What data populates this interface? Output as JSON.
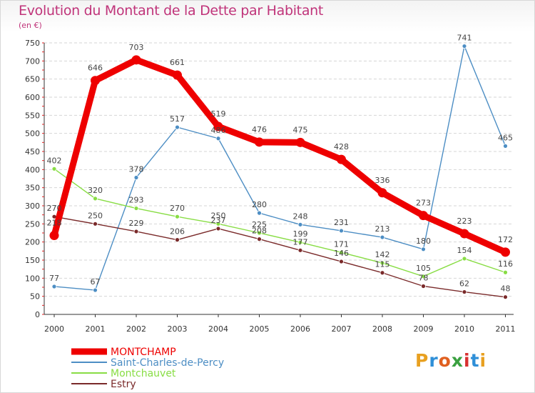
{
  "header": {
    "title": "Evolution du Montant de la Dette par Habitant",
    "unit": "(en €)"
  },
  "logo": {
    "text": "Proxiti",
    "colors": [
      "#e8a020",
      "#2f8fd8",
      "#e06020",
      "#3aa040",
      "#d83030",
      "#2f8fd8",
      "#e8a020"
    ]
  },
  "chart_data": {
    "type": "line",
    "title": "Evolution du Montant de la Dette par Habitant",
    "subtitle": "(en €)",
    "xlabel": "",
    "ylabel": "",
    "x": [
      "2000",
      "2001",
      "2002",
      "2003",
      "2004",
      "2005",
      "2006",
      "2007",
      "2008",
      "2009",
      "2010",
      "2011"
    ],
    "ylim": [
      0,
      750
    ],
    "yticks": [
      0,
      50,
      100,
      150,
      200,
      250,
      300,
      350,
      400,
      450,
      500,
      550,
      600,
      650,
      700,
      750
    ],
    "grid": "horizontal",
    "legend_position": "bottom-left",
    "series": [
      {
        "name": "MONTCHAMP",
        "color": "#ee0000",
        "emphasis": true,
        "values": [
          218,
          646,
          703,
          661,
          519,
          476,
          475,
          428,
          336,
          273,
          223,
          172
        ],
        "labels": [
          "218",
          "646",
          "703",
          "661",
          "519",
          "476",
          "475",
          "428",
          "336",
          "273",
          "223",
          "172"
        ]
      },
      {
        "name": "Saint-Charles-de-Percy",
        "color": "#4d8ec4",
        "values": [
          77,
          67,
          378,
          517,
          486,
          280,
          248,
          231,
          213,
          180,
          741,
          465
        ],
        "labels": [
          "77",
          "67",
          "378",
          "517",
          "486",
          "280",
          "248",
          "231",
          "213",
          "180",
          "741",
          "465"
        ]
      },
      {
        "name": "Montchauvet",
        "color": "#88dd44",
        "values": [
          402,
          320,
          293,
          270,
          250,
          225,
          199,
          171,
          142,
          105,
          154,
          116
        ],
        "labels": [
          "402",
          "320",
          "293",
          "270",
          "250",
          "225",
          "199",
          "171",
          "142",
          "105",
          "154",
          "116"
        ]
      },
      {
        "name": "Estry",
        "color": "#7a2a2a",
        "values": [
          270,
          250,
          229,
          206,
          237,
          208,
          177,
          146,
          115,
          78,
          62,
          48
        ],
        "labels": [
          "270",
          "250",
          "229",
          "206",
          "237",
          "208",
          "177",
          "146",
          "115",
          "78",
          "62",
          "48"
        ]
      }
    ]
  }
}
